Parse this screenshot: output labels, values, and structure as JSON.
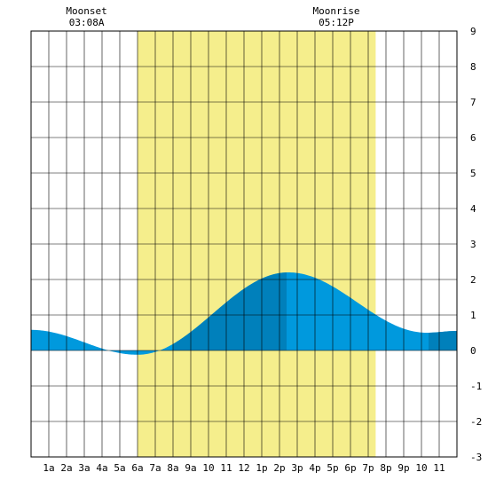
{
  "chart_data": {
    "type": "area",
    "title": "",
    "xlabel": "",
    "ylabel": "",
    "x_range_hours": [
      0,
      24
    ],
    "ylim": [
      -3,
      9
    ],
    "y_ticks": [
      "-3",
      "-2",
      "-1",
      "0",
      "1",
      "2",
      "3",
      "4",
      "5",
      "6",
      "7",
      "8",
      "9"
    ],
    "x_tick_labels": [
      "1a",
      "2a",
      "3a",
      "4a",
      "5a",
      "6a",
      "7a",
      "8a",
      "9a",
      "10",
      "11",
      "12",
      "1p",
      "2p",
      "3p",
      "4p",
      "5p",
      "6p",
      "7p",
      "8p",
      "9p",
      "10",
      "11"
    ],
    "grid": true,
    "daylight": {
      "start_hour": 6.0,
      "end_hour": 19.42,
      "color": "#f5ee8c"
    },
    "moon_events": [
      {
        "label": "Moonset",
        "time": "03:08A",
        "hour": 3.13
      },
      {
        "label": "Moonrise",
        "time": "05:12P",
        "hour": 17.2
      }
    ],
    "tide_extremes": [
      {
        "hour": 0.0,
        "value": 0.58
      },
      {
        "hour": 6.0,
        "value": -0.12
      },
      {
        "hour": 14.5,
        "value": 2.2
      },
      {
        "hour": 22.3,
        "value": 0.5
      },
      {
        "hour": 24.0,
        "value": 0.55
      }
    ],
    "highlight_bands": [
      {
        "start_hour": 8.0,
        "end_hour": 14.4
      },
      {
        "start_hour": 22.4,
        "end_hour": 24.0
      }
    ],
    "colors": {
      "fill": "#0099dd",
      "fill_dark": "#0080bb",
      "grid": "#000000",
      "background": "#ffffff"
    }
  }
}
